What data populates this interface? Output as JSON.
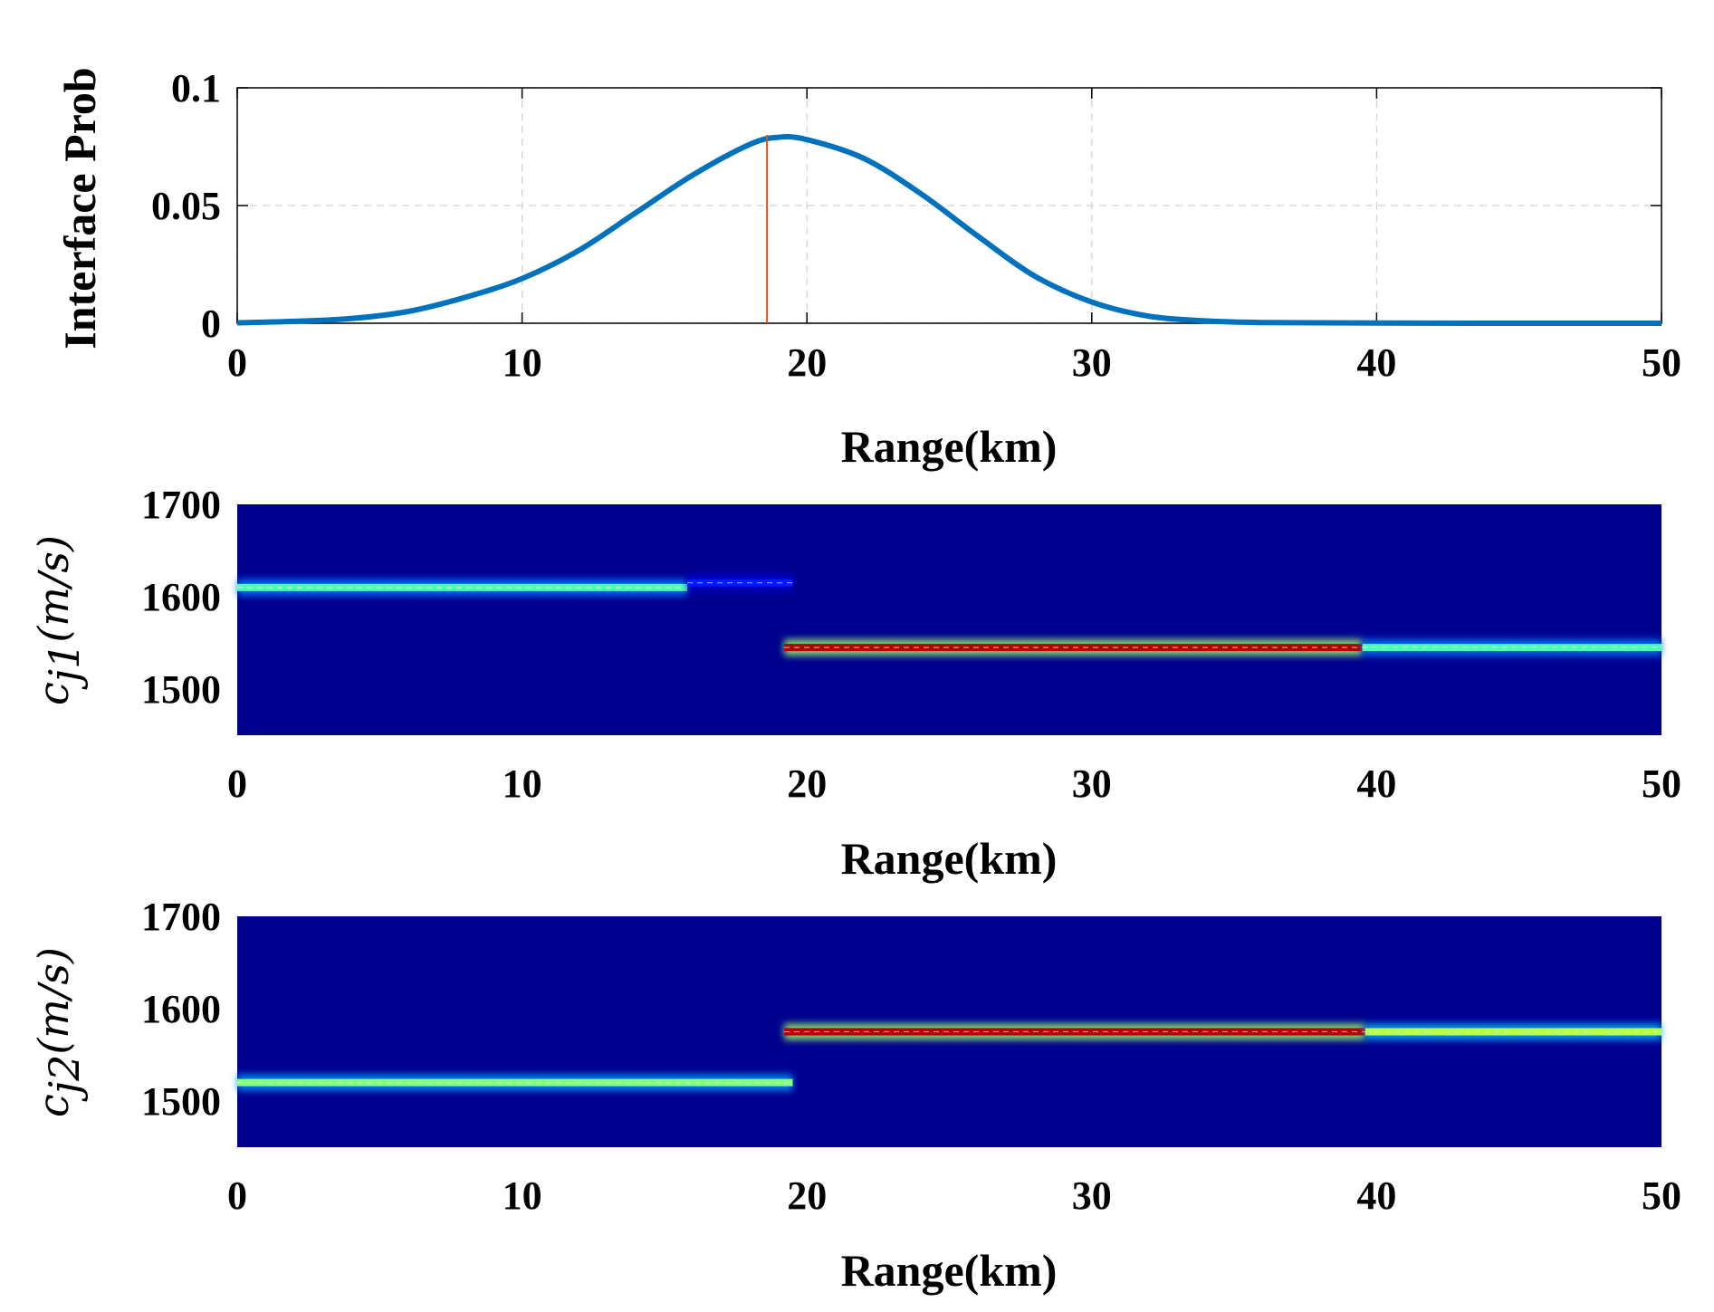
{
  "chart_data": [
    {
      "type": "line",
      "xlabel": "Range(km)",
      "ylabel": "Interface Prob",
      "xlim": [
        0,
        50
      ],
      "ylim": [
        0,
        0.1
      ],
      "xticks": [
        "0",
        "10",
        "20",
        "30",
        "40",
        "50"
      ],
      "yticks": [
        "0",
        "0.05",
        "0.1"
      ],
      "grid": true,
      "series": [
        {
          "color": "#0072BD",
          "x": [
            0,
            2,
            4,
            6,
            8,
            10,
            12,
            14,
            16,
            18,
            19,
            20,
            22,
            24,
            26,
            28,
            30,
            32,
            34,
            36,
            40,
            45,
            50
          ],
          "y": [
            0.0002,
            0.0008,
            0.002,
            0.005,
            0.011,
            0.019,
            0.031,
            0.047,
            0.063,
            0.076,
            0.079,
            0.078,
            0.07,
            0.055,
            0.037,
            0.02,
            0.009,
            0.003,
            0.001,
            0.0003,
            0.0001,
            0.0,
            0.0
          ]
        }
      ],
      "vline": {
        "x": 18.6,
        "ymax": 0.08,
        "color": "#D95319"
      }
    },
    {
      "type": "heatmap",
      "xlabel": "Range(km)",
      "ylabel_base": "c",
      "ylabel_sub": "j1",
      "ylabel_unit": "(m/s)",
      "xlim": [
        0,
        50
      ],
      "ylim": [
        1450,
        1700
      ],
      "xticks": [
        "0",
        "10",
        "20",
        "30",
        "40",
        "50"
      ],
      "yticks": [
        "1500",
        "1600",
        "1700"
      ],
      "colormap": "jet",
      "background_color": "#00008F",
      "bands": [
        {
          "x": [
            0,
            15.8
          ],
          "y": 1610,
          "intensity": 0.45
        },
        {
          "x": [
            15.8,
            19.5
          ],
          "y": 1615,
          "intensity": 0.15
        },
        {
          "x": [
            19.2,
            39.5
          ],
          "y": 1545,
          "intensity": 0.95
        },
        {
          "x": [
            39.5,
            50
          ],
          "y": 1545,
          "intensity": 0.45
        }
      ]
    },
    {
      "type": "heatmap",
      "xlabel": "Range(km)",
      "ylabel_base": "c",
      "ylabel_sub": "j2",
      "ylabel_unit": "(m/s)",
      "xlim": [
        0,
        50
      ],
      "ylim": [
        1450,
        1700
      ],
      "xticks": [
        "0",
        "10",
        "20",
        "30",
        "40",
        "50"
      ],
      "yticks": [
        "1500",
        "1600",
        "1700"
      ],
      "colormap": "jet",
      "background_color": "#00008F",
      "bands": [
        {
          "x": [
            0,
            19.5
          ],
          "y": 1520,
          "intensity": 0.5
        },
        {
          "x": [
            19.2,
            39.6
          ],
          "y": 1575,
          "intensity": 0.95
        },
        {
          "x": [
            39.6,
            50
          ],
          "y": 1575,
          "intensity": 0.55
        }
      ]
    }
  ]
}
